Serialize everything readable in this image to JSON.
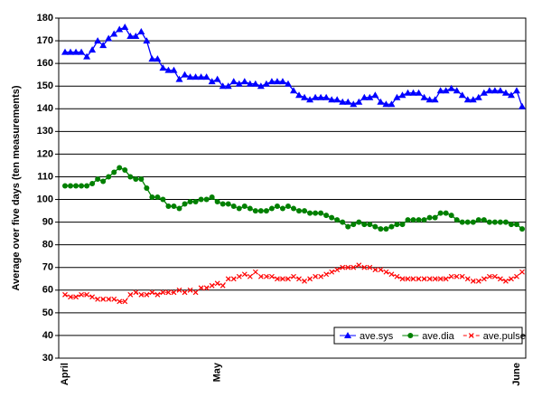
{
  "chart_data": {
    "type": "line",
    "y_label": "Average over five days (ten measurements)",
    "categories": [
      "April",
      null,
      null,
      null,
      null,
      null,
      null,
      null,
      null,
      null,
      null,
      null,
      null,
      null,
      null,
      null,
      null,
      null,
      null,
      null,
      null,
      null,
      null,
      null,
      null,
      null,
      null,
      null,
      "May",
      null,
      null,
      null,
      null,
      null,
      null,
      null,
      null,
      null,
      null,
      null,
      null,
      null,
      null,
      null,
      null,
      null,
      null,
      null,
      null,
      null,
      null,
      null,
      null,
      null,
      null,
      null,
      null,
      null,
      null,
      null,
      null,
      null,
      null,
      null,
      null,
      null,
      null,
      null,
      null,
      null,
      null,
      null,
      null,
      null,
      null,
      null,
      null,
      null,
      null,
      null,
      null,
      null,
      null,
      "June",
      null
    ],
    "series": [
      {
        "name": "ave.sys",
        "color": "#0000ff",
        "marker": "triangle",
        "values": [
          165,
          165,
          165,
          165,
          163,
          166,
          170,
          168,
          171,
          173,
          175,
          176,
          172,
          172,
          174,
          170,
          162,
          162,
          158,
          157,
          157,
          153,
          155,
          154,
          154,
          154,
          154,
          152,
          153,
          150,
          150,
          152,
          151,
          152,
          151,
          151,
          150,
          151,
          152,
          152,
          152,
          151,
          148,
          146,
          145,
          144,
          145,
          145,
          145,
          144,
          144,
          143,
          143,
          142,
          143,
          145,
          145,
          146,
          143,
          142,
          142,
          145,
          146,
          147,
          147,
          147,
          145,
          144,
          144,
          148,
          148,
          149,
          148,
          146,
          144,
          144,
          145,
          147,
          148,
          148,
          148,
          147,
          146,
          148,
          141
        ]
      },
      {
        "name": "ave.dia",
        "color": "#008000",
        "marker": "circle",
        "values": [
          106,
          106,
          106,
          106,
          106,
          107,
          109,
          108,
          110,
          112,
          114,
          113,
          110,
          109,
          109,
          105,
          101,
          101,
          100,
          97,
          97,
          96,
          98,
          99,
          99,
          100,
          100,
          101,
          99,
          98,
          98,
          97,
          96,
          97,
          96,
          95,
          95,
          95,
          96,
          97,
          96,
          97,
          96,
          95,
          95,
          94,
          94,
          94,
          93,
          92,
          91,
          90,
          88,
          89,
          90,
          89,
          89,
          88,
          87,
          87,
          88,
          89,
          89,
          91,
          91,
          91,
          91,
          92,
          92,
          94,
          94,
          93,
          91,
          90,
          90,
          90,
          91,
          91,
          90,
          90,
          90,
          90,
          89,
          89,
          87
        ]
      },
      {
        "name": "ave.pulse",
        "color": "#ff0000",
        "marker": "x",
        "dashed": true,
        "values": [
          58,
          57,
          57,
          58,
          58,
          57,
          56,
          56,
          56,
          56,
          55,
          55,
          58,
          59,
          58,
          58,
          59,
          58,
          59,
          59,
          59,
          60,
          59,
          60,
          59,
          61,
          61,
          62,
          63,
          62,
          65,
          65,
          66,
          67,
          66,
          68,
          66,
          66,
          66,
          65,
          65,
          65,
          66,
          65,
          64,
          65,
          66,
          66,
          67,
          68,
          69,
          70,
          70,
          70,
          71,
          70,
          70,
          69,
          69,
          68,
          67,
          66,
          65,
          65,
          65,
          65,
          65,
          65,
          65,
          65,
          65,
          66,
          66,
          66,
          65,
          64,
          64,
          65,
          66,
          66,
          65,
          64,
          65,
          66,
          68
        ]
      }
    ],
    "ylim": [
      30,
      180
    ],
    "yticks": [
      30,
      40,
      50,
      60,
      70,
      80,
      90,
      100,
      110,
      120,
      130,
      140,
      150,
      160,
      170,
      180
    ],
    "grid": true,
    "legend": "lower right"
  }
}
